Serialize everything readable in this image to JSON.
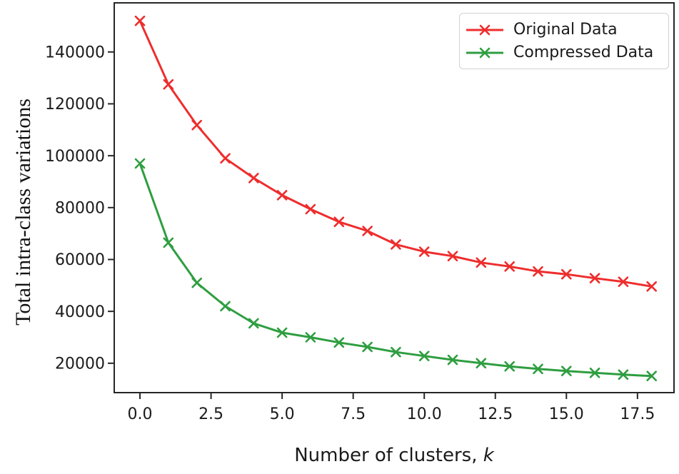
{
  "figure": {
    "background": "#ffffff",
    "axis_color": "#262626",
    "text_color": "#1a1a1a",
    "legend_border_color": "#d2d2d2"
  },
  "chart_data": {
    "type": "line",
    "title": "",
    "xlabel_prefix": "Number of clusters, ",
    "xlabel_italic": "k",
    "ylabel": "Total intra-class variations",
    "x": [
      0,
      1,
      2,
      3,
      4,
      5,
      6,
      7,
      8,
      9,
      10,
      11,
      12,
      13,
      14,
      15,
      16,
      17,
      18
    ],
    "series": [
      {
        "name": "Original Data",
        "color": "#ee2d2d",
        "marker": "x",
        "values": [
          152000,
          127500,
          111800,
          99000,
          91400,
          84800,
          79400,
          74500,
          71000,
          65800,
          63000,
          61300,
          58800,
          57300,
          55400,
          54300,
          52800,
          51400,
          49600
        ]
      },
      {
        "name": "Compressed Data",
        "color": "#2e9e40",
        "marker": "x",
        "values": [
          97000,
          66500,
          51000,
          42000,
          35400,
          31800,
          30000,
          28000,
          26300,
          24300,
          22800,
          21300,
          20000,
          18800,
          17800,
          17000,
          16300,
          15600,
          15100
        ]
      }
    ],
    "xlim": [
      -0.93,
      18.81
    ],
    "ylim": [
      8400,
      159200
    ],
    "xtick_values": [
      0,
      2.5,
      5,
      7.5,
      10,
      12.5,
      15,
      17.5
    ],
    "xtick_labels": [
      "0.0",
      "2.5",
      "5.0",
      "7.5",
      "10.0",
      "12.5",
      "15.0",
      "17.5"
    ],
    "ytick_values": [
      20000,
      40000,
      60000,
      80000,
      100000,
      120000,
      140000
    ],
    "ytick_labels": [
      "20000",
      "40000",
      "60000",
      "80000",
      "100000",
      "120000",
      "140000"
    ],
    "grid": false,
    "legend_position": "upper right"
  }
}
